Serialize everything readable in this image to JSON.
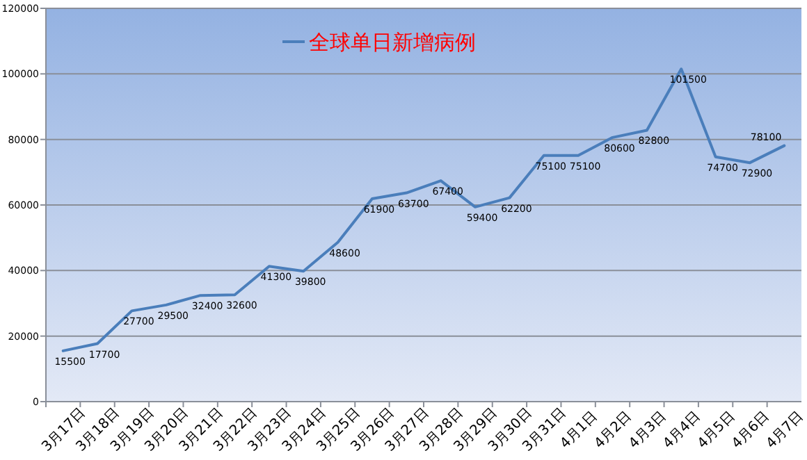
{
  "chart_data": {
    "type": "line",
    "categories": [
      "3月17日",
      "3月18日",
      "3月19日",
      "3月20日",
      "3月21日",
      "3月22日",
      "3月23日",
      "3月24日",
      "3月25日",
      "3月26日",
      "3月27日",
      "3月28日",
      "3月29日",
      "3月30日",
      "3月31日",
      "4月1日",
      "4月2日",
      "4月3日",
      "4月4日",
      "4月5日",
      "4月6日",
      "4月7日"
    ],
    "series": [
      {
        "name": "全球单日新增病例",
        "color": "#4a7ebb",
        "values": [
          15500,
          17700,
          27700,
          29500,
          32400,
          32600,
          41300,
          39800,
          48600,
          61900,
          63700,
          67400,
          59400,
          62200,
          75100,
          75100,
          80600,
          82800,
          101500,
          74700,
          72900,
          78100
        ]
      }
    ],
    "ylim": [
      0,
      120000
    ],
    "yticks": [
      0,
      20000,
      40000,
      60000,
      80000,
      100000,
      120000
    ],
    "grid": "y",
    "legend": "top",
    "data_labels": true,
    "marker": "none",
    "line_style": "solid"
  }
}
